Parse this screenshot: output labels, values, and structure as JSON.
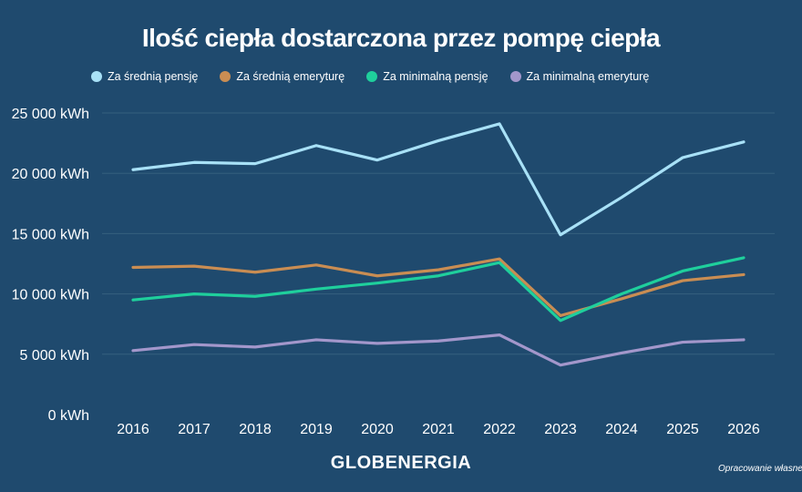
{
  "chart_data": {
    "type": "line",
    "title": "Ilość ciepła dostarczona przez pompę ciepła",
    "xlabel": "",
    "ylabel": "",
    "x": [
      "2016",
      "2017",
      "2018",
      "2019",
      "2020",
      "2021",
      "2022",
      "2023",
      "2024",
      "2025",
      "2026"
    ],
    "ylim": [
      0,
      25000
    ],
    "yticks": [
      0,
      5000,
      10000,
      15000,
      20000,
      25000
    ],
    "ytick_labels": [
      "0 kWh",
      "5 000 kWh",
      "10 000 kWh",
      "15 000 kWh",
      "20 000 kWh",
      "25 000 kWh"
    ],
    "grid": true,
    "legend_position": "top",
    "series": [
      {
        "name": "Za średnią pensję",
        "color": "#a8e1f7",
        "values": [
          20300,
          20900,
          20800,
          22300,
          21100,
          22700,
          24100,
          14900,
          18000,
          21300,
          22600
        ]
      },
      {
        "name": "Za średnią emeryturę",
        "color": "#c98d53",
        "values": [
          12200,
          12300,
          11800,
          12400,
          11500,
          12000,
          12900,
          8200,
          9600,
          11100,
          11600
        ]
      },
      {
        "name": "Za minimalną pensję",
        "color": "#1fcf9c",
        "values": [
          9500,
          10000,
          9800,
          10400,
          10900,
          11500,
          12600,
          7800,
          10000,
          11900,
          13000
        ]
      },
      {
        "name": "Za minimalną emeryturę",
        "color": "#a397cb",
        "values": [
          5300,
          5800,
          5600,
          6200,
          5900,
          6100,
          6600,
          4100,
          5100,
          6000,
          6200
        ]
      }
    ]
  },
  "branding": {
    "logo_text": "GLOBENERGIA",
    "source_text": "Opracowanie własne"
  }
}
